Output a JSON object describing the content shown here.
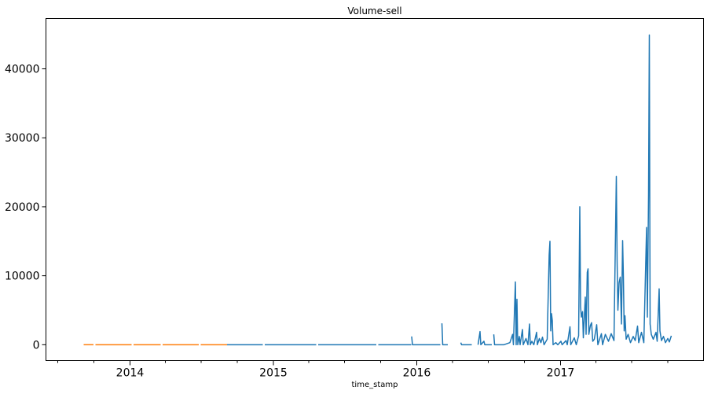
{
  "chart_data": {
    "type": "line",
    "title": "Volume-sell",
    "xlabel": "time_stamp",
    "ylabel": "",
    "xlim": [
      "2013-06-01",
      "2017-12-31"
    ],
    "ylim": [
      -2300,
      47300
    ],
    "x_ticks": [
      {
        "label": "2014",
        "date": "2014-01-01"
      },
      {
        "label": "2015",
        "date": "2015-01-01"
      },
      {
        "label": "2016",
        "date": "2016-01-01"
      },
      {
        "label": "2017",
        "date": "2017-01-01"
      }
    ],
    "y_ticks": [
      {
        "label": "0",
        "value": 0
      },
      {
        "label": "10000",
        "value": 10000
      },
      {
        "label": "20000",
        "value": 20000
      },
      {
        "label": "30000",
        "value": 30000
      },
      {
        "label": "40000",
        "value": 40000
      }
    ],
    "grid": false,
    "series": [
      {
        "color": "#ff7f0e",
        "segments": [
          [
            [
              "2013-09-05",
              0
            ],
            [
              "2013-09-30",
              0
            ]
          ],
          [
            [
              "2013-10-05",
              0
            ],
            [
              "2014-01-05",
              0
            ]
          ],
          [
            [
              "2014-01-10",
              0
            ],
            [
              "2014-03-20",
              0
            ]
          ],
          [
            [
              "2014-03-25",
              0
            ],
            [
              "2014-06-25",
              0
            ]
          ],
          [
            [
              "2014-06-30",
              0
            ],
            [
              "2014-09-05",
              0
            ]
          ]
        ]
      },
      {
        "color": "#1f77b4",
        "segments": [
          [
            [
              "2014-09-05",
              0
            ],
            [
              "2014-12-05",
              0
            ]
          ],
          [
            [
              "2014-12-10",
              0
            ],
            [
              "2015-04-20",
              0
            ]
          ],
          [
            [
              "2015-04-25",
              0
            ],
            [
              "2015-09-20",
              0
            ]
          ],
          [
            [
              "2015-09-25",
              0
            ],
            [
              "2015-12-18",
              0
            ]
          ],
          [
            [
              "2015-12-19",
              1200
            ],
            [
              "2015-12-21",
              0
            ],
            [
              "2016-03-01",
              0
            ]
          ],
          [
            [
              "2016-03-05",
              3100
            ],
            [
              "2016-03-07",
              0
            ],
            [
              "2016-03-20",
              0
            ]
          ],
          [
            [
              "2016-04-22",
              300
            ],
            [
              "2016-04-24",
              0
            ],
            [
              "2016-05-20",
              0
            ]
          ],
          [
            [
              "2016-06-05",
              0
            ],
            [
              "2016-06-10",
              1900
            ],
            [
              "2016-06-12",
              0
            ],
            [
              "2016-06-20",
              500
            ],
            [
              "2016-06-22",
              0
            ],
            [
              "2016-07-10",
              0
            ]
          ],
          [
            [
              "2016-07-15",
              1500
            ],
            [
              "2016-07-17",
              0
            ],
            [
              "2016-08-10",
              0
            ],
            [
              "2016-08-25",
              300
            ],
            [
              "2016-09-01",
              1500
            ],
            [
              "2016-09-03",
              0
            ],
            [
              "2016-09-08",
              9100
            ],
            [
              "2016-09-10",
              0
            ],
            [
              "2016-09-12",
              6600
            ],
            [
              "2016-09-14",
              0
            ],
            [
              "2016-09-18",
              1200
            ],
            [
              "2016-09-20",
              0
            ],
            [
              "2016-09-26",
              2200
            ],
            [
              "2016-09-28",
              0
            ],
            [
              "2016-10-05",
              900
            ],
            [
              "2016-10-10",
              0
            ],
            [
              "2016-10-14",
              3000
            ],
            [
              "2016-10-16",
              0
            ],
            [
              "2016-10-20",
              500
            ],
            [
              "2016-10-25",
              0
            ],
            [
              "2016-11-01",
              1800
            ],
            [
              "2016-11-03",
              0
            ],
            [
              "2016-11-08",
              900
            ],
            [
              "2016-11-12",
              300
            ],
            [
              "2016-11-16",
              1100
            ],
            [
              "2016-11-20",
              0
            ],
            [
              "2016-11-28",
              800
            ],
            [
              "2016-12-03",
              13000
            ],
            [
              "2016-12-05",
              15000
            ],
            [
              "2016-12-07",
              2000
            ],
            [
              "2016-12-09",
              4500
            ],
            [
              "2016-12-11",
              3500
            ],
            [
              "2016-12-13",
              0
            ],
            [
              "2016-12-20",
              300
            ],
            [
              "2016-12-25",
              0
            ],
            [
              "2017-01-02",
              500
            ],
            [
              "2017-01-05",
              0
            ],
            [
              "2017-01-15",
              600
            ],
            [
              "2017-01-18",
              0
            ],
            [
              "2017-01-25",
              2600
            ],
            [
              "2017-01-27",
              0
            ],
            [
              "2017-02-05",
              1000
            ],
            [
              "2017-02-10",
              0
            ],
            [
              "2017-02-16",
              1300
            ],
            [
              "2017-02-19",
              20000
            ],
            [
              "2017-02-21",
              5500
            ],
            [
              "2017-02-23",
              4000
            ],
            [
              "2017-02-26",
              4800
            ],
            [
              "2017-02-28",
              1000
            ],
            [
              "2017-03-05",
              6900
            ],
            [
              "2017-03-07",
              1500
            ],
            [
              "2017-03-10",
              10500
            ],
            [
              "2017-03-12",
              11000
            ],
            [
              "2017-03-14",
              1500
            ],
            [
              "2017-03-18",
              2800
            ],
            [
              "2017-03-21",
              3200
            ],
            [
              "2017-03-24",
              500
            ],
            [
              "2017-03-28",
              800
            ],
            [
              "2017-04-03",
              2900
            ],
            [
              "2017-04-06",
              0
            ],
            [
              "2017-04-15",
              1600
            ],
            [
              "2017-04-18",
              0
            ],
            [
              "2017-04-25",
              1500
            ],
            [
              "2017-05-03",
              500
            ],
            [
              "2017-05-10",
              1600
            ],
            [
              "2017-05-17",
              600
            ],
            [
              "2017-05-23",
              24400
            ],
            [
              "2017-05-25",
              12000
            ],
            [
              "2017-05-27",
              5000
            ],
            [
              "2017-05-30",
              9000
            ],
            [
              "2017-06-02",
              9800
            ],
            [
              "2017-06-05",
              3000
            ],
            [
              "2017-06-08",
              15100
            ],
            [
              "2017-06-10",
              9800
            ],
            [
              "2017-06-12",
              2000
            ],
            [
              "2017-06-14",
              4200
            ],
            [
              "2017-06-17",
              800
            ],
            [
              "2017-06-22",
              1500
            ],
            [
              "2017-06-28",
              300
            ],
            [
              "2017-07-05",
              1200
            ],
            [
              "2017-07-10",
              600
            ],
            [
              "2017-07-16",
              2700
            ],
            [
              "2017-07-19",
              300
            ],
            [
              "2017-07-26",
              1800
            ],
            [
              "2017-08-01",
              300
            ],
            [
              "2017-08-08",
              17000
            ],
            [
              "2017-08-10",
              4000
            ],
            [
              "2017-08-13",
              21700
            ],
            [
              "2017-08-15",
              44900
            ],
            [
              "2017-08-17",
              3000
            ],
            [
              "2017-08-20",
              1500
            ],
            [
              "2017-08-25",
              800
            ],
            [
              "2017-09-01",
              1800
            ],
            [
              "2017-09-04",
              500
            ],
            [
              "2017-09-09",
              8100
            ],
            [
              "2017-09-11",
              2000
            ],
            [
              "2017-09-15",
              600
            ],
            [
              "2017-09-20",
              1200
            ],
            [
              "2017-09-25",
              300
            ],
            [
              "2017-10-01",
              900
            ],
            [
              "2017-10-05",
              400
            ],
            [
              "2017-10-10",
              1300
            ]
          ]
        ]
      }
    ]
  }
}
